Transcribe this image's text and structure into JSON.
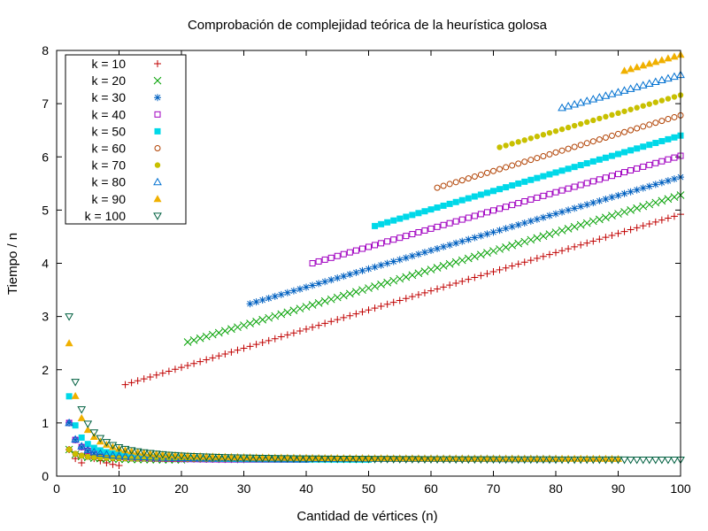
{
  "chart_data": {
    "type": "scatter",
    "title": "Comprobación de complejidad teórica de la heurística golosa",
    "xlabel": "Cantidad de vértices (n)",
    "ylabel": "Tiempo / n",
    "xlim": [
      0,
      100
    ],
    "ylim": [
      0,
      8
    ],
    "x_ticks": [
      "0",
      "10",
      "20",
      "30",
      "40",
      "50",
      "60",
      "70",
      "80",
      "90",
      "100"
    ],
    "y_ticks": [
      "0",
      "1",
      "2",
      "3",
      "4",
      "5",
      "6",
      "7",
      "8"
    ],
    "grid": false,
    "legend_position": "top-left",
    "series": [
      {
        "name": "k = 10",
        "color": "#c00000",
        "marker": "plus",
        "low": {
          "x_start": 2,
          "x_end": 10,
          "y": [
            0.5,
            0.33,
            0.25,
            0.4,
            0.33,
            0.29,
            0.25,
            0.22,
            0.2
          ]
        },
        "high": {
          "x_start": 11,
          "x_end": 100,
          "y_start": 1.72,
          "y_end": 4.92
        }
      },
      {
        "name": "k = 20",
        "color": "#00a000",
        "marker": "cross",
        "low": {
          "x_start": 2,
          "x_end": 20,
          "y_start": 0.5,
          "y_end": 0.3
        },
        "high": {
          "x_start": 21,
          "x_end": 100,
          "y_start": 2.52,
          "y_end": 5.28
        }
      },
      {
        "name": "k = 30",
        "color": "#0060c0",
        "marker": "star",
        "low": {
          "x_start": 2,
          "x_end": 30,
          "y_start": 1.0,
          "y_end": 0.3
        },
        "high": {
          "x_start": 31,
          "x_end": 100,
          "y_start": 3.24,
          "y_end": 5.62
        }
      },
      {
        "name": "k = 40",
        "color": "#a000c0",
        "marker": "square-open",
        "low": {
          "x_start": 2,
          "x_end": 40,
          "y_start": 1.0,
          "y_end": 0.3
        },
        "high": {
          "x_start": 41,
          "x_end": 100,
          "y_start": 4.0,
          "y_end": 6.02
        }
      },
      {
        "name": "k = 50",
        "color": "#00d8e8",
        "marker": "square-filled",
        "low": {
          "x_start": 2,
          "x_end": 50,
          "y_start": 1.5,
          "y_end": 0.3
        },
        "high": {
          "x_start": 51,
          "x_end": 100,
          "y_start": 4.7,
          "y_end": 6.4
        }
      },
      {
        "name": "k = 60",
        "color": "#b04000",
        "marker": "circle-open",
        "low": {
          "x_start": 2,
          "x_end": 60,
          "y_start": 0.5,
          "y_end": 0.32
        },
        "high": {
          "x_start": 61,
          "x_end": 100,
          "y_start": 5.42,
          "y_end": 6.78
        }
      },
      {
        "name": "k = 70",
        "color": "#c8c000",
        "marker": "circle-filled",
        "low": {
          "x_start": 2,
          "x_end": 70,
          "y_start": 0.5,
          "y_end": 0.32
        },
        "high": {
          "x_start": 71,
          "x_end": 100,
          "y_start": 6.18,
          "y_end": 7.16
        }
      },
      {
        "name": "k = 80",
        "color": "#0070d0",
        "marker": "triangle-open",
        "low": {
          "x_start": 2,
          "x_end": 80,
          "y_start": 1.0,
          "y_end": 0.32
        },
        "high": {
          "x_start": 81,
          "x_end": 100,
          "y_start": 6.92,
          "y_end": 7.54
        }
      },
      {
        "name": "k = 90",
        "color": "#f0b000",
        "marker": "triangle-filled",
        "low": {
          "x_start": 2,
          "x_end": 90,
          "y_start": 2.5,
          "y_end": 0.32
        },
        "high": {
          "x_start": 91,
          "x_end": 100,
          "y_start": 7.62,
          "y_end": 7.92
        }
      },
      {
        "name": "k = 100",
        "color": "#006040",
        "marker": "triangle-down-open",
        "low": {
          "x_start": 2,
          "x_end": 100,
          "y_start": 3.0,
          "y_end": 0.3
        },
        "high": null
      }
    ]
  }
}
